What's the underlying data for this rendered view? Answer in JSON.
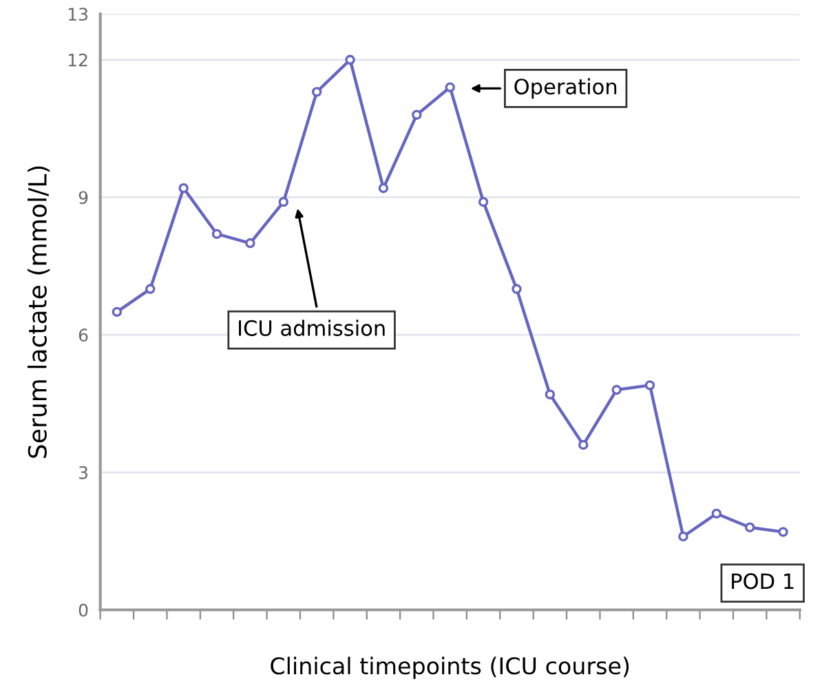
{
  "chart_data": {
    "type": "line",
    "xlabel": "Clinical timepoints (ICU course)",
    "ylabel": "Serum lactate (mmol/L)",
    "categories": [
      null,
      null,
      null,
      null,
      null,
      null,
      null,
      null,
      null,
      null,
      null,
      null,
      null,
      null,
      null,
      null,
      null,
      null,
      null,
      null,
      null
    ],
    "series": [
      {
        "color": "#6666c0",
        "values": [
          6.5,
          7.0,
          9.2,
          8.2,
          8.0,
          8.9,
          11.3,
          12.0,
          9.2,
          10.8,
          11.4,
          8.9,
          7.0,
          4.7,
          3.6,
          4.8,
          4.9,
          1.6,
          2.1,
          1.8,
          1.7
        ]
      }
    ],
    "ylim": [
      0,
      13
    ],
    "yticks": [
      0,
      3,
      6,
      9,
      12,
      13
    ],
    "grid": "y",
    "marker": "circle",
    "line_style": "solid",
    "annotations": [
      "ICU admission",
      "Operation",
      "POD 1"
    ]
  }
}
